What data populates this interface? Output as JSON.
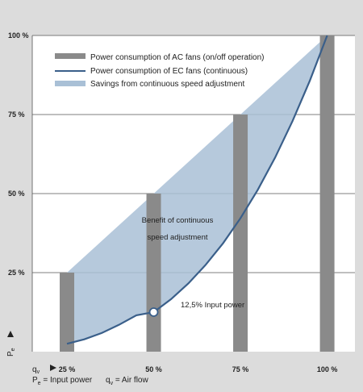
{
  "chart_data": {
    "type": "bar",
    "categories": [
      "25 %",
      "50 %",
      "75 %",
      "100 %"
    ],
    "series": [
      {
        "name": "Power consumption of AC fans (on/off operation)",
        "type": "bar",
        "x": [
          25,
          50,
          75,
          100
        ],
        "values": [
          25,
          50,
          75,
          100
        ],
        "color": "#8a8a8a"
      },
      {
        "name": "Power consumption of EC fans (continuous)",
        "type": "line",
        "x": [
          25,
          30,
          35,
          40,
          45,
          50,
          55,
          60,
          65,
          70,
          75,
          80,
          85,
          90,
          95,
          100
        ],
        "values": [
          2.5,
          3.9,
          5.9,
          8.5,
          11.5,
          12.5,
          16.6,
          21.6,
          27.5,
          34.3,
          42.2,
          51.2,
          61.4,
          72.9,
          85.7,
          100
        ],
        "color": "#3a5f8a"
      },
      {
        "name": "Savings from continuous speed adjustment",
        "type": "area",
        "color": "#a9c0d6"
      }
    ],
    "yticks": [
      "100 %",
      "75 %",
      "50 %",
      "25 %"
    ],
    "xticks": [
      "25 %",
      "50 %",
      "75 %",
      "100 %"
    ],
    "ylim": [
      0,
      100
    ],
    "xlim": [
      15,
      108
    ],
    "grid": true,
    "legend_position": "top-left",
    "annotations": {
      "benefit_line1": "Benefit of continuous",
      "benefit_line2": "speed adjustment",
      "marker_label": "12,5% Input power",
      "marker_x": 50,
      "marker_y": 12.5
    },
    "y_axis_symbol": "P",
    "y_axis_symbol_sub": "e",
    "x_axis_symbol": "q",
    "x_axis_symbol_sub": "v",
    "footer": {
      "pe_label": "P",
      "pe_sub": "e",
      "pe_text": " = Input power",
      "qv_label": "q",
      "qv_sub": "v",
      "qv_text": " = Air flow"
    }
  }
}
